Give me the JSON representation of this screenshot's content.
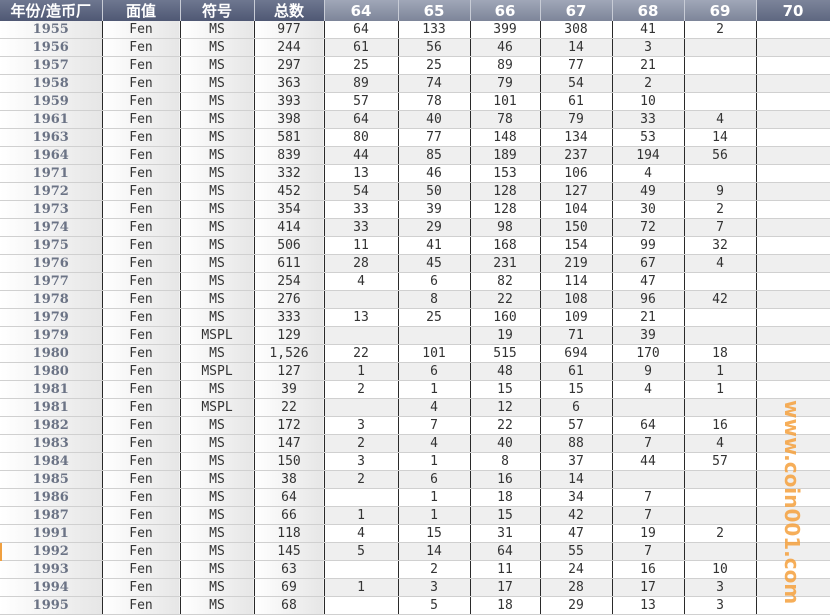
{
  "table": {
    "headers": [
      "年份/造币厂",
      "面值",
      "符号",
      "总数",
      "64",
      "65",
      "66",
      "67",
      "68",
      "69",
      "70"
    ],
    "rows": [
      [
        "1955",
        "Fen",
        "MS",
        "977",
        "64",
        "133",
        "399",
        "308",
        "41",
        "2",
        ""
      ],
      [
        "1956",
        "Fen",
        "MS",
        "244",
        "61",
        "56",
        "46",
        "14",
        "3",
        "",
        ""
      ],
      [
        "1957",
        "Fen",
        "MS",
        "297",
        "25",
        "25",
        "89",
        "77",
        "21",
        "",
        ""
      ],
      [
        "1958",
        "Fen",
        "MS",
        "363",
        "89",
        "74",
        "79",
        "54",
        "2",
        "",
        ""
      ],
      [
        "1959",
        "Fen",
        "MS",
        "393",
        "57",
        "78",
        "101",
        "61",
        "10",
        "",
        ""
      ],
      [
        "1961",
        "Fen",
        "MS",
        "398",
        "64",
        "40",
        "78",
        "79",
        "33",
        "4",
        ""
      ],
      [
        "1963",
        "Fen",
        "MS",
        "581",
        "80",
        "77",
        "148",
        "134",
        "53",
        "14",
        ""
      ],
      [
        "1964",
        "Fen",
        "MS",
        "839",
        "44",
        "85",
        "189",
        "237",
        "194",
        "56",
        ""
      ],
      [
        "1971",
        "Fen",
        "MS",
        "332",
        "13",
        "46",
        "153",
        "106",
        "4",
        "",
        ""
      ],
      [
        "1972",
        "Fen",
        "MS",
        "452",
        "54",
        "50",
        "128",
        "127",
        "49",
        "9",
        ""
      ],
      [
        "1973",
        "Fen",
        "MS",
        "354",
        "33",
        "39",
        "128",
        "104",
        "30",
        "2",
        ""
      ],
      [
        "1974",
        "Fen",
        "MS",
        "414",
        "33",
        "29",
        "98",
        "150",
        "72",
        "7",
        ""
      ],
      [
        "1975",
        "Fen",
        "MS",
        "506",
        "11",
        "41",
        "168",
        "154",
        "99",
        "32",
        ""
      ],
      [
        "1976",
        "Fen",
        "MS",
        "611",
        "28",
        "45",
        "231",
        "219",
        "67",
        "4",
        ""
      ],
      [
        "1977",
        "Fen",
        "MS",
        "254",
        "4",
        "6",
        "82",
        "114",
        "47",
        "",
        ""
      ],
      [
        "1978",
        "Fen",
        "MS",
        "276",
        "",
        "8",
        "22",
        "108",
        "96",
        "42",
        ""
      ],
      [
        "1979",
        "Fen",
        "MS",
        "333",
        "13",
        "25",
        "160",
        "109",
        "21",
        "",
        ""
      ],
      [
        "1979",
        "Fen",
        "MSPL",
        "129",
        "",
        "",
        "19",
        "71",
        "39",
        "",
        ""
      ],
      [
        "1980",
        "Fen",
        "MS",
        "1,526",
        "22",
        "101",
        "515",
        "694",
        "170",
        "18",
        ""
      ],
      [
        "1980",
        "Fen",
        "MSPL",
        "127",
        "1",
        "6",
        "48",
        "61",
        "9",
        "1",
        ""
      ],
      [
        "1981",
        "Fen",
        "MS",
        "39",
        "2",
        "1",
        "15",
        "15",
        "4",
        "1",
        ""
      ],
      [
        "1981",
        "Fen",
        "MSPL",
        "22",
        "",
        "4",
        "12",
        "6",
        "",
        "",
        ""
      ],
      [
        "1982",
        "Fen",
        "MS",
        "172",
        "3",
        "7",
        "22",
        "57",
        "64",
        "16",
        ""
      ],
      [
        "1983",
        "Fen",
        "MS",
        "147",
        "2",
        "4",
        "40",
        "88",
        "7",
        "4",
        ""
      ],
      [
        "1984",
        "Fen",
        "MS",
        "150",
        "3",
        "1",
        "8",
        "37",
        "44",
        "57",
        ""
      ],
      [
        "1985",
        "Fen",
        "MS",
        "38",
        "2",
        "6",
        "16",
        "14",
        "",
        "",
        ""
      ],
      [
        "1986",
        "Fen",
        "MS",
        "64",
        "",
        "1",
        "18",
        "34",
        "7",
        "",
        ""
      ],
      [
        "1987",
        "Fen",
        "MS",
        "66",
        "1",
        "1",
        "15",
        "42",
        "7",
        "",
        ""
      ],
      [
        "1991",
        "Fen",
        "MS",
        "118",
        "4",
        "15",
        "31",
        "47",
        "19",
        "2",
        ""
      ],
      [
        "1992",
        "Fen",
        "MS",
        "145",
        "5",
        "14",
        "64",
        "55",
        "7",
        "",
        ""
      ],
      [
        "1993",
        "Fen",
        "MS",
        "63",
        "",
        "2",
        "11",
        "24",
        "16",
        "10",
        ""
      ],
      [
        "1994",
        "Fen",
        "MS",
        "69",
        "1",
        "3",
        "17",
        "28",
        "17",
        "3",
        ""
      ],
      [
        "1995",
        "Fen",
        "MS",
        "68",
        "",
        "5",
        "18",
        "29",
        "13",
        "3",
        ""
      ]
    ]
  },
  "watermark": "www.coin001.com",
  "colors": {
    "header_dark": "#5a6380",
    "header_light": "#8e96a8",
    "alt_row": "#efefef",
    "watermark": "#f5a03c"
  }
}
